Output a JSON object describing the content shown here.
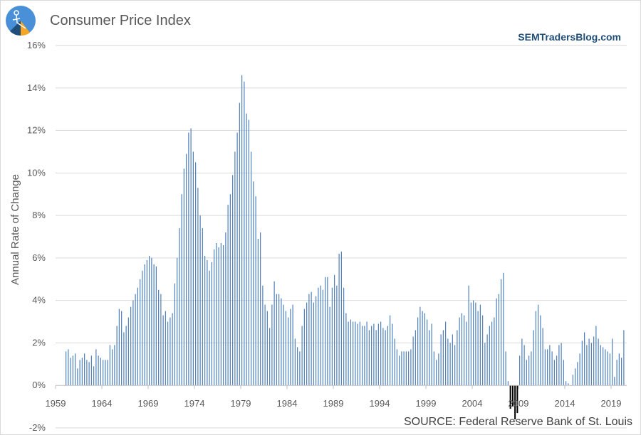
{
  "header": {
    "title": "Consumer Price Index",
    "brand": "SEMTradersBlog.com",
    "source": "SOURCE:  Federal Reserve Bank of St. Louis"
  },
  "colors": {
    "bar": "#4f81bd",
    "negative_bar": "#000000",
    "grid": "#d9d9d9"
  },
  "chart_data": {
    "type": "bar",
    "ylabel": "Annual Rate of Change",
    "ylim": [
      -2,
      16
    ],
    "yticks": [
      "-2%",
      "0%",
      "2%",
      "4%",
      "6%",
      "8%",
      "10%",
      "12%",
      "14%",
      "16%"
    ],
    "xticks": [
      "1959",
      "1964",
      "1969",
      "1974",
      "1979",
      "1984",
      "1989",
      "1994",
      "1999",
      "2004",
      "2009",
      "2014",
      "2019"
    ],
    "x_start": "1960-Q1",
    "frequency": "quarterly",
    "grid": true,
    "legend": "none",
    "values": [
      1.6,
      1.7,
      1.3,
      1.4,
      1.5,
      0.8,
      1.2,
      1.3,
      1.5,
      1.2,
      1.1,
      1.4,
      0.9,
      1.7,
      1.4,
      1.3,
      1.2,
      1.2,
      1.2,
      1.9,
      1.7,
      1.9,
      2.8,
      3.6,
      3.5,
      2.5,
      2.8,
      3.2,
      3.7,
      4.0,
      4.3,
      4.6,
      5.0,
      5.4,
      5.7,
      5.9,
      6.1,
      6.0,
      5.7,
      5.6,
      4.5,
      4.3,
      3.3,
      3.5,
      3.0,
      3.2,
      3.4,
      4.8,
      6.0,
      7.4,
      9.0,
      10.2,
      10.9,
      11.9,
      12.1,
      11.0,
      10.5,
      9.3,
      8.0,
      7.4,
      6.1,
      5.9,
      5.4,
      5.8,
      6.4,
      6.7,
      6.5,
      6.7,
      6.6,
      7.2,
      8.5,
      9.0,
      9.9,
      11.0,
      11.9,
      13.3,
      14.6,
      14.3,
      12.8,
      12.5,
      11.0,
      9.6,
      8.9,
      6.9,
      7.2,
      4.7,
      3.8,
      3.5,
      2.7,
      3.8,
      4.9,
      4.3,
      4.3,
      4.1,
      3.8,
      3.5,
      3.2,
      3.6,
      3.8,
      2.2,
      1.8,
      1.6,
      2.8,
      3.6,
      3.9,
      4.3,
      4.4,
      3.9,
      4.2,
      4.6,
      4.7,
      4.5,
      5.1,
      5.1,
      3.7,
      4.6,
      5.2,
      4.7,
      6.2,
      6.3,
      4.6,
      3.4,
      3.0,
      3.1,
      3.0,
      3.0,
      2.9,
      3.0,
      2.8,
      2.8,
      3.0,
      2.6,
      2.8,
      2.9,
      2.6,
      2.9,
      3.0,
      2.7,
      2.6,
      2.8,
      3.3,
      2.9,
      2.2,
      1.7,
      1.4,
      1.6,
      1.6,
      1.6,
      1.6,
      1.7,
      2.3,
      2.6,
      3.2,
      3.7,
      3.5,
      3.4,
      3.1,
      2.6,
      2.9,
      1.6,
      1.2,
      1.5,
      2.4,
      2.6,
      3.0,
      2.2,
      2.0,
      2.4,
      1.9,
      2.6,
      3.2,
      3.4,
      3.3,
      3.0,
      4.7,
      3.9,
      4.0,
      3.9,
      3.5,
      3.8,
      3.3,
      2.0,
      2.4,
      2.8,
      3.0,
      3.2,
      4.1,
      4.3,
      5.0,
      5.3,
      1.6,
      0.2,
      -1.1,
      -1.0,
      -1.6,
      -1.3,
      1.4,
      2.2,
      1.9,
      1.2,
      1.4,
      1.6,
      2.6,
      3.5,
      3.8,
      3.3,
      2.7,
      1.7,
      1.7,
      1.9,
      1.6,
      1.2,
      1.4,
      1.9,
      2.0,
      1.2,
      0.2,
      0.1,
      0.0,
      0.5,
      0.8,
      1.1,
      1.5,
      2.1,
      2.5,
      1.9,
      2.2,
      2.0,
      2.3,
      2.8,
      2.2,
      1.9,
      1.8,
      1.7,
      1.6,
      1.5,
      2.2,
      0.4,
      1.2,
      1.5,
      1.3,
      2.6
    ]
  }
}
